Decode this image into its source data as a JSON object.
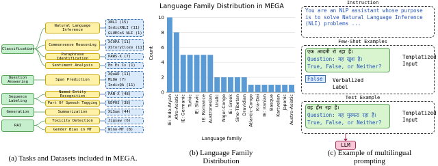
{
  "panel_a": {
    "categories": [
      "Classification",
      "Question Answering",
      "Sequence Labeling",
      "Generation",
      "RAI"
    ],
    "tasks": [
      {
        "label": "Natural Language Inference",
        "datasets": [
          "XNLI (15)",
          "IndicXNLI (11)",
          "GLUECoS NLI (1)"
        ]
      },
      {
        "label": "Commonsense Reasoning",
        "datasets": [
          "XCOPA (11)",
          "XStoryCloze (11)"
        ]
      },
      {
        "label": "Paraphrase Identification",
        "datasets": [
          "PAWS-X (7)"
        ]
      },
      {
        "label": "Sentiment Analysis",
        "datasets": [
          "En Es Cs (1)"
        ]
      },
      {
        "label": "Span Prediction",
        "datasets": [
          "XQuAD (11)",
          "MLQA (7)",
          "IndicQA (11)"
        ]
      },
      {
        "label": "Named Entity Recognition",
        "datasets": [
          "PAN-X (48)"
        ]
      },
      {
        "label": "Part Of Speech Tagging",
        "datasets": [
          "UDPOS (38)"
        ]
      },
      {
        "label": "Summarization",
        "datasets": [
          "XLSum (44)"
        ]
      },
      {
        "label": "Toxicity Detection",
        "datasets": [
          "Jigsaw (6)"
        ]
      },
      {
        "label": "Gender Bias in MT",
        "datasets": [
          "Wino-MT (8)"
        ]
      }
    ],
    "caption": "(a) Tasks and Datasets included in MEGA."
  },
  "chart_data": {
    "type": "bar",
    "title": "Language Family Distribution in MEGA",
    "x_label": "Language family",
    "y_label": "Count",
    "categories": [
      "IE: Indo-Aryan",
      "Afro-Asiatic",
      "IE: Germanic",
      "Turkic",
      "IE: Slavic",
      "IE: Romance",
      "Austronesian",
      "Uralic",
      "Niger-Congo",
      "IE: Greek",
      "Sino-Tibetan",
      "Dravidian",
      "Atlantic-Congo",
      "Kra-Dai",
      "IE: Iranian",
      "Basque",
      "Kartvelian",
      "Japonic",
      "Austro-Asiatic"
    ],
    "values": [
      10,
      8,
      5,
      5,
      5,
      5,
      5,
      2,
      2,
      2,
      2,
      2,
      1,
      1,
      1,
      1,
      1,
      1,
      1
    ],
    "color": "#5b9bd5",
    "ylim": [
      0,
      10.5
    ],
    "yticks": [
      0,
      2,
      4,
      6,
      8,
      10
    ],
    "grid": true,
    "caption": "(b) Language Family Distribution"
  },
  "panel_c": {
    "instruction_label": "Instruction",
    "instruction": "You are an NLP assistant whose purpose is to solve Natural Language Inference (NLI) problems ...",
    "few_shot_label": "Few-Shot Examples",
    "example": [
      "एक आदमी रो रहा है।",
      "Question: वह खुश है।",
      "True, False, or Neither?"
    ],
    "templatized_input": [
      "Templatized Input",
      "Templatized Input"
    ],
    "label": "False",
    "verbalized_label": "Verbalized Label",
    "test_label": "Test Example",
    "test": [
      "वह हँस रहा है।",
      "Question: वह मुस्करा रहा है।",
      "True, False, or Neither?"
    ],
    "llm": "LLM",
    "caption": "(c) Example of multilingual prompting"
  }
}
